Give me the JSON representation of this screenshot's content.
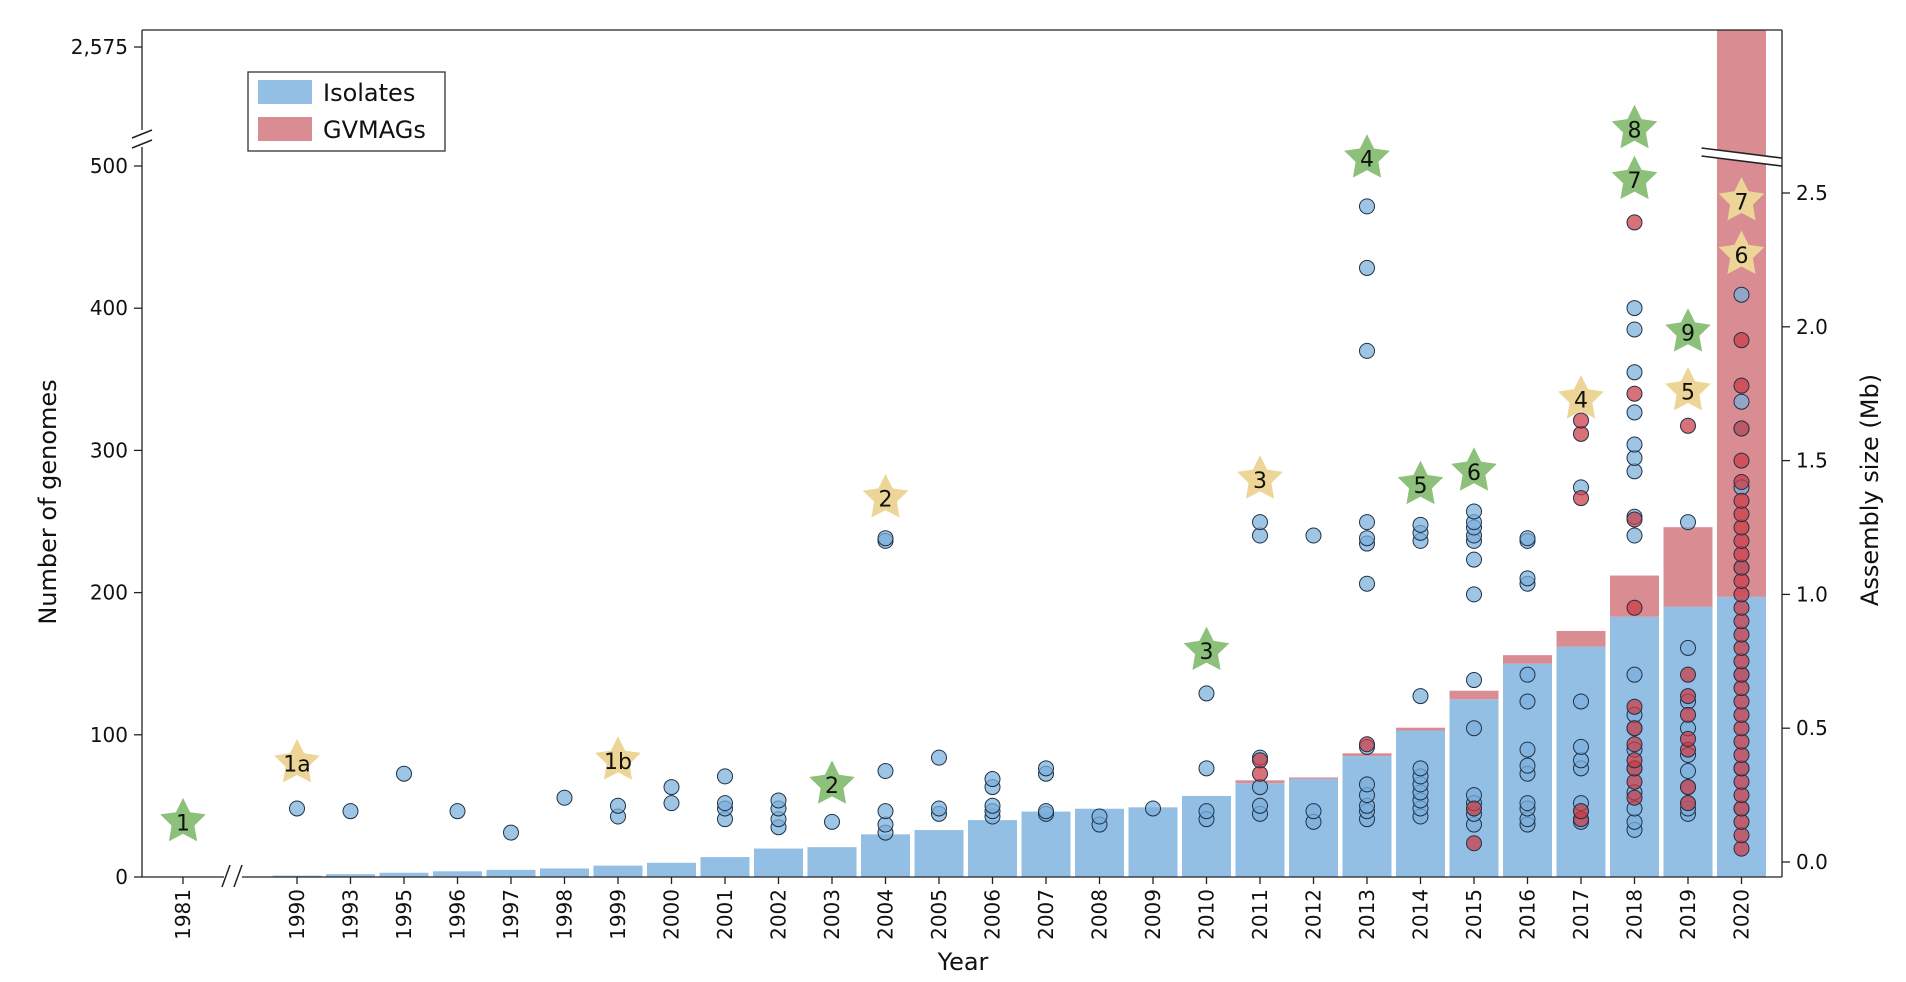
{
  "chart_data": {
    "type": "bar",
    "xlabel": "Year",
    "ylabel": "Number of genomes",
    "y2label": "Assembly size (Mb)",
    "categories": [
      "1981",
      "1990",
      "1993",
      "1995",
      "1996",
      "1997",
      "1998",
      "1999",
      "2000",
      "2001",
      "2002",
      "2003",
      "2004",
      "2005",
      "2006",
      "2007",
      "2008",
      "2009",
      "2010",
      "2011",
      "2012",
      "2013",
      "2014",
      "2015",
      "2016",
      "2017",
      "2018",
      "2019",
      "2020"
    ],
    "legend_position": "top-left",
    "series": [
      {
        "name": "Isolates",
        "color": "#93bfe4",
        "values": [
          0,
          1,
          2,
          3,
          4,
          5,
          6,
          8,
          10,
          14,
          20,
          21,
          30,
          33,
          40,
          46,
          48,
          49,
          57,
          66,
          69,
          85,
          103,
          125,
          150,
          162,
          183,
          190,
          197
        ]
      },
      {
        "name": "GVMAGs",
        "color": "#d98c91",
        "values": [
          0,
          0,
          0,
          0,
          0,
          0,
          0,
          0,
          0,
          0,
          0,
          0,
          0,
          0,
          0,
          0,
          0,
          0,
          0,
          2,
          1,
          2,
          2,
          6,
          6,
          11,
          29,
          56,
          2378
        ]
      }
    ],
    "y_ticks": [
      "0",
      "100",
      "200",
      "300",
      "400",
      "500",
      "2,575"
    ],
    "y2_ticks": [
      "0.0",
      "0.5",
      "1.0",
      "1.5",
      "2.0",
      "2.5"
    ],
    "y2lim": [
      0,
      2.5
    ],
    "axis_breaks": [
      "y between 500 and 2,575",
      "x between 1981 and 1990"
    ],
    "assembly_sizes": {
      "1990": [
        0.2
      ],
      "1993": [
        0.19
      ],
      "1995": [
        0.33
      ],
      "1996": [
        0.19
      ],
      "1997": [
        0.11
      ],
      "1998": [
        0.24
      ],
      "1999": [
        0.17,
        0.21
      ],
      "2000": [
        0.22,
        0.28
      ],
      "2001": [
        0.16,
        0.2,
        0.22,
        0.32
      ],
      "2002": [
        0.13,
        0.16,
        0.2,
        0.23
      ],
      "2003": [
        0.15
      ],
      "2004": [
        0.11,
        0.14,
        0.19,
        0.34,
        1.2,
        1.21
      ],
      "2005": [
        0.18,
        0.2,
        0.39
      ],
      "2006": [
        0.17,
        0.19,
        0.21,
        0.28,
        0.31
      ],
      "2007": [
        0.18,
        0.19,
        0.33,
        0.35
      ],
      "2008": [
        0.14,
        0.17
      ],
      "2009": [
        0.2
      ],
      "2010": [
        0.16,
        0.19,
        0.35,
        0.63
      ],
      "2011": [
        0.18,
        0.21,
        0.28,
        0.39,
        1.22,
        1.27
      ],
      "2012": [
        0.15,
        0.19,
        1.22
      ],
      "2013": [
        0.16,
        0.19,
        0.21,
        0.25,
        0.29,
        0.43,
        1.04,
        1.19,
        1.21,
        1.27,
        1.91,
        2.22,
        2.45
      ],
      "2014": [
        0.17,
        0.2,
        0.23,
        0.26,
        0.29,
        0.32,
        0.35,
        0.62,
        1.2,
        1.23,
        1.26
      ],
      "2015": [
        0.14,
        0.18,
        0.22,
        0.25,
        0.5,
        0.68,
        1.0,
        1.13,
        1.2,
        1.22,
        1.25,
        1.27,
        1.31
      ],
      "2016": [
        0.14,
        0.16,
        0.2,
        0.22,
        0.33,
        0.36,
        0.42,
        0.6,
        0.7,
        1.04,
        1.06,
        1.2,
        1.21
      ],
      "2017": [
        0.15,
        0.19,
        0.22,
        0.35,
        0.38,
        0.43,
        0.6,
        1.4
      ],
      "2018": [
        0.12,
        0.15,
        0.2,
        0.26,
        0.35,
        0.42,
        0.5,
        0.55,
        0.7,
        1.22,
        1.29,
        1.46,
        1.51,
        1.56,
        1.68,
        1.83,
        1.99,
        2.07
      ],
      "2019": [
        0.18,
        0.2,
        0.22,
        0.28,
        0.34,
        0.4,
        0.5,
        0.6,
        0.8,
        1.27
      ],
      "2020": [
        0.2,
        0.35,
        0.7,
        1.1,
        1.4,
        1.62,
        1.72,
        2.12
      ]
    },
    "gvmag_assembly_sizes": {
      "2011": [
        0.33,
        0.38
      ],
      "2013": [
        0.44
      ],
      "2015": [
        0.07,
        0.2
      ],
      "2017": [
        0.16,
        0.19,
        1.36,
        1.6,
        1.65
      ],
      "2018": [
        0.24,
        0.3,
        0.35,
        0.38,
        0.44,
        0.5,
        0.58,
        0.95,
        1.28,
        1.75,
        2.39
      ],
      "2019": [
        0.22,
        0.28,
        0.42,
        0.46,
        0.55,
        0.62,
        0.7,
        1.63
      ],
      "2020": [
        0.05,
        0.1,
        0.15,
        0.2,
        0.25,
        0.3,
        0.35,
        0.4,
        0.45,
        0.5,
        0.55,
        0.6,
        0.65,
        0.7,
        0.75,
        0.8,
        0.85,
        0.9,
        0.95,
        1.0,
        1.05,
        1.1,
        1.15,
        1.2,
        1.25,
        1.3,
        1.35,
        1.42,
        1.5,
        1.62,
        1.78,
        1.95
      ]
    },
    "annotations": [
      {
        "label": "1",
        "year": "1981",
        "value": 0.15,
        "color": "green"
      },
      {
        "label": "1a",
        "year": "1990",
        "value": 0.37,
        "color": "yellow"
      },
      {
        "label": "1b",
        "year": "1999",
        "value": 0.38,
        "color": "yellow"
      },
      {
        "label": "2",
        "year": "2003",
        "value": 0.29,
        "color": "green"
      },
      {
        "label": "2",
        "year": "2004",
        "value": 1.36,
        "color": "yellow"
      },
      {
        "label": "3",
        "year": "2010",
        "value": 0.79,
        "color": "green"
      },
      {
        "label": "3",
        "year": "2011",
        "value": 1.43,
        "color": "yellow"
      },
      {
        "label": "4",
        "year": "2013",
        "value": 2.63,
        "color": "green"
      },
      {
        "label": "5",
        "year": "2014",
        "value": 1.41,
        "color": "green"
      },
      {
        "label": "6",
        "year": "2015",
        "value": 1.46,
        "color": "green"
      },
      {
        "label": "4",
        "year": "2017",
        "value": 1.73,
        "color": "yellow"
      },
      {
        "label": "8",
        "year": "2018",
        "value": 2.74,
        "color": "green"
      },
      {
        "label": "7",
        "year": "2018",
        "value": 2.55,
        "color": "green"
      },
      {
        "label": "9",
        "year": "2019",
        "value": 1.98,
        "color": "green"
      },
      {
        "label": "5",
        "year": "2019",
        "value": 1.76,
        "color": "yellow"
      },
      {
        "label": "7",
        "year": "2020",
        "value": 2.47,
        "color": "yellow"
      },
      {
        "label": "6",
        "year": "2020",
        "value": 2.27,
        "color": "yellow"
      }
    ]
  },
  "colors": {
    "isolates": "#93bfe4",
    "gvmags": "#d98c91",
    "point_blue": "#7aaedb",
    "point_red": "#cc3a44",
    "star_green": "#8dc07a",
    "star_yellow": "#ecd596"
  }
}
